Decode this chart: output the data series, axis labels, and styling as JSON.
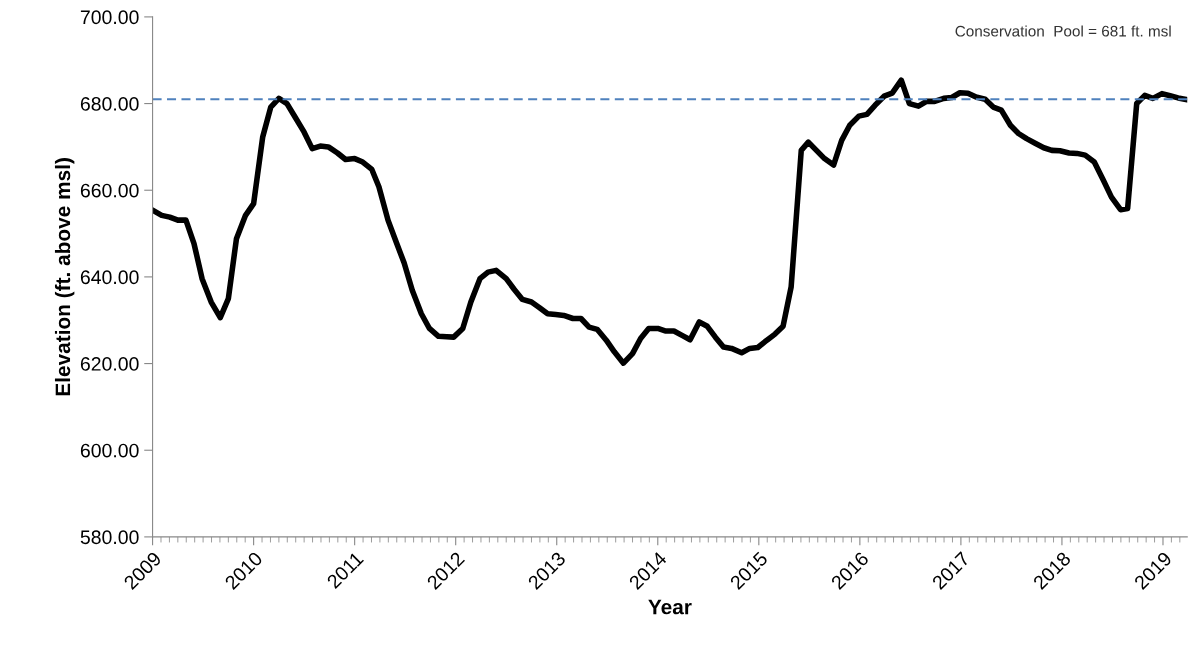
{
  "chart_data": {
    "type": "line",
    "xlabel": "Year",
    "ylabel": "Elevation (ft. above msl)",
    "x": [
      2009.0,
      2009.09,
      2009.17,
      2009.25,
      2009.33,
      2009.41,
      2009.49,
      2009.58,
      2009.67,
      2009.75,
      2009.83,
      2009.92,
      2010.0,
      2010.09,
      2010.17,
      2010.25,
      2010.33,
      2010.41,
      2010.5,
      2010.58,
      2010.66,
      2010.74,
      2010.83,
      2010.91,
      2011.0,
      2011.08,
      2011.17,
      2011.24,
      2011.33,
      2011.41,
      2011.49,
      2011.57,
      2011.66,
      2011.74,
      2011.83,
      2011.91,
      2011.98,
      2012.07,
      2012.15,
      2012.24,
      2012.32,
      2012.4,
      2012.5,
      2012.58,
      2012.66,
      2012.75,
      2012.83,
      2012.91,
      2012.99,
      2013.07,
      2013.16,
      2013.24,
      2013.32,
      2013.4,
      2013.49,
      2013.57,
      2013.66,
      2013.75,
      2013.83,
      2013.91,
      2014.0,
      2014.08,
      2014.16,
      2014.24,
      2014.32,
      2014.41,
      2014.49,
      2014.57,
      2014.65,
      2014.73,
      2014.83,
      2014.91,
      2014.99,
      2015.08,
      2015.16,
      2015.24,
      2015.32,
      2015.42,
      2015.49,
      2015.57,
      2015.65,
      2015.74,
      2015.82,
      2015.9,
      2015.99,
      2016.07,
      2016.15,
      2016.24,
      2016.32,
      2016.41,
      2016.49,
      2016.58,
      2016.66,
      2016.74,
      2016.83,
      2016.91,
      2016.99,
      2017.07,
      2017.15,
      2017.24,
      2017.32,
      2017.4,
      2017.49,
      2017.57,
      2017.65,
      2017.73,
      2017.82,
      2017.9,
      2017.98,
      2018.07,
      2018.15,
      2018.23,
      2018.32,
      2018.41,
      2018.49,
      2018.58,
      2018.65,
      2018.74,
      2018.82,
      2018.9,
      2018.99,
      2019.07,
      2019.15,
      2019.24
    ],
    "series": [
      {
        "color": "#000000",
        "values": [
          655.4,
          654.2,
          653.8,
          653.1,
          653.1,
          647.7,
          639.6,
          634.2,
          630.6,
          635.0,
          648.8,
          654.2,
          656.9,
          672.3,
          679.2,
          681.2,
          680.0,
          676.9,
          673.4,
          669.6,
          670.2,
          670.0,
          668.6,
          667.1,
          667.3,
          666.5,
          664.8,
          660.8,
          653.1,
          648.1,
          643.2,
          636.9,
          631.5,
          628.1,
          626.3,
          626.2,
          626.1,
          628.1,
          634.2,
          639.6,
          641.1,
          641.5,
          639.6,
          637.1,
          634.8,
          634.2,
          632.9,
          631.5,
          631.3,
          631.1,
          630.4,
          630.4,
          628.4,
          627.9,
          625.4,
          622.7,
          620.1,
          622.3,
          625.8,
          628.1,
          628.1,
          627.5,
          627.5,
          626.5,
          625.5,
          629.6,
          628.6,
          626.1,
          623.8,
          623.5,
          622.5,
          623.5,
          623.7,
          625.4,
          626.8,
          628.6,
          637.7,
          669.2,
          671.1,
          669.2,
          667.3,
          665.8,
          671.5,
          675.0,
          677.1,
          677.5,
          679.6,
          681.7,
          682.4,
          685.4,
          680.0,
          679.4,
          680.5,
          680.5,
          681.2,
          681.4,
          682.5,
          682.4,
          681.5,
          681.0,
          679.2,
          678.5,
          675.0,
          673.1,
          671.9,
          670.9,
          669.8,
          669.2,
          669.1,
          668.6,
          668.5,
          668.1,
          666.5,
          662.3,
          658.4,
          655.5,
          655.8,
          680.0,
          681.9,
          681.2,
          682.3,
          681.8,
          681.3,
          680.9
        ]
      }
    ],
    "xlim": [
      2009,
      2019.24
    ],
    "xticks": [
      2009,
      2010,
      2011,
      2012,
      2013,
      2014,
      2015,
      2016,
      2017,
      2018,
      2019
    ],
    "ylim": [
      580,
      700
    ],
    "yticks": [
      {
        "value": 580,
        "label": "580.00"
      },
      {
        "value": 600,
        "label": "600.00"
      },
      {
        "value": 620,
        "label": "620.00"
      },
      {
        "value": 640,
        "label": "640.00"
      },
      {
        "value": 660,
        "label": "660.00"
      },
      {
        "value": 680,
        "label": "680.00"
      },
      {
        "value": 700,
        "label": "700.00"
      }
    ],
    "ref_lines": [
      {
        "axis": "y",
        "value": 681,
        "color": "#4f81bd",
        "line_style": "dashed"
      }
    ],
    "annotations": [
      "Conservation  Pool = 681 ft. msl"
    ],
    "grid": false,
    "legend": false,
    "marker": "none",
    "line_style": "solid"
  }
}
